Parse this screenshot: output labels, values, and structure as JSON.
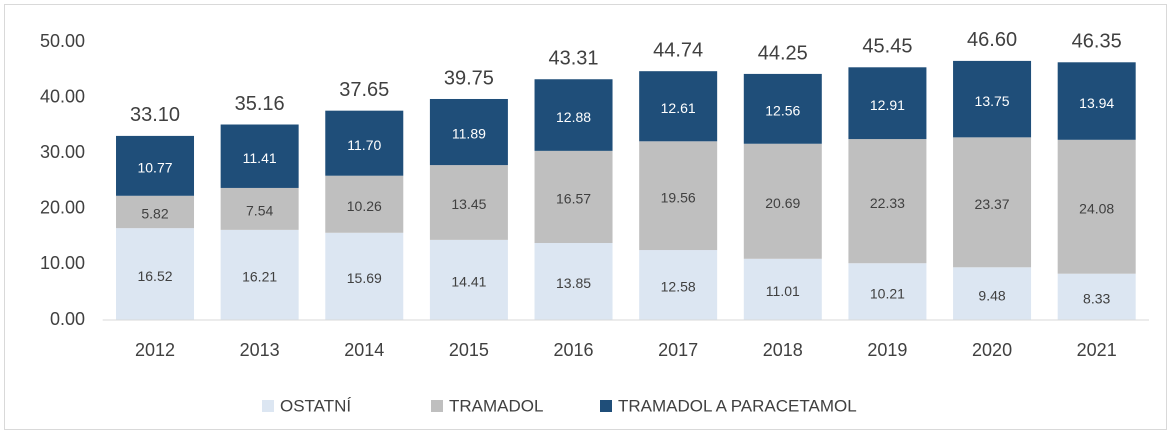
{
  "chart_data": {
    "type": "stacked_bar",
    "categories": [
      "2012",
      "2013",
      "2014",
      "2015",
      "2016",
      "2017",
      "2018",
      "2019",
      "2020",
      "2021"
    ],
    "series": [
      {
        "name": "OSTATNÍ",
        "color": "#dce6f2",
        "values": [
          16.52,
          16.21,
          15.69,
          14.41,
          13.85,
          12.58,
          11.01,
          10.21,
          9.48,
          8.33
        ],
        "value_labels": [
          "16.52",
          "16.21",
          "15.69",
          "14.41",
          "13.85",
          "12.58",
          "11.01",
          "10.21",
          "9.48",
          "8.33"
        ]
      },
      {
        "name": "TRAMADOL",
        "color": "#bfbfbf",
        "values": [
          5.82,
          7.54,
          10.26,
          13.45,
          16.57,
          19.56,
          20.69,
          22.33,
          23.37,
          24.08
        ],
        "value_labels": [
          "5.82",
          "7.54",
          "10.26",
          "13.45",
          "16.57",
          "19.56",
          "20.69",
          "22.33",
          "23.37",
          "24.08"
        ]
      },
      {
        "name": "TRAMADOL A PARACETAMOL",
        "color": "#1f4e79",
        "values": [
          10.77,
          11.41,
          11.7,
          11.89,
          12.88,
          12.61,
          12.56,
          12.91,
          13.75,
          13.94
        ],
        "value_labels": [
          "10.77",
          "11.41",
          "11.70",
          "11.89",
          "12.88",
          "12.61",
          "12.56",
          "12.91",
          "13.75",
          "13.94"
        ]
      }
    ],
    "totals": {
      "values": [
        33.1,
        35.16,
        37.65,
        39.75,
        43.31,
        44.74,
        44.25,
        45.45,
        46.6,
        46.35
      ],
      "value_labels": [
        "33.10",
        "35.16",
        "37.65",
        "39.75",
        "43.31",
        "44.74",
        "44.25",
        "45.45",
        "46.60",
        "46.35"
      ]
    },
    "ylim": [
      0,
      50
    ],
    "yticks": [
      {
        "value": 0,
        "label": "0.00"
      },
      {
        "value": 10,
        "label": "10.00"
      },
      {
        "value": 20,
        "label": "20.00"
      },
      {
        "value": 30,
        "label": "30.00"
      },
      {
        "value": 40,
        "label": "40.00"
      },
      {
        "value": 50,
        "label": "50.00"
      }
    ],
    "grid": false,
    "legend": "bottom"
  }
}
